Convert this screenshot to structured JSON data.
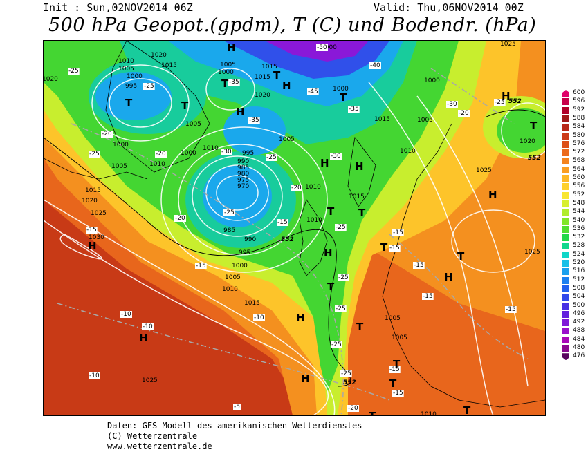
{
  "header": {
    "init": "Init : Sun,02NOV2014 06Z",
    "valid": "Valid: Thu,06NOV2014 00Z",
    "title": "500 hPa Geopot.(gpdm), T (C) und Bodendr. (hPa)"
  },
  "legend": {
    "values": [
      "600",
      "596",
      "592",
      "588",
      "584",
      "580",
      "576",
      "572",
      "568",
      "564",
      "560",
      "556",
      "552",
      "548",
      "544",
      "540",
      "536",
      "532",
      "528",
      "524",
      "520",
      "516",
      "512",
      "508",
      "504",
      "500",
      "496",
      "492",
      "488",
      "484",
      "480",
      "476"
    ],
    "colors": [
      "#e0006a",
      "#c8004a",
      "#b00028",
      "#a01818",
      "#b82818",
      "#cc3a18",
      "#dd5018",
      "#ec6a1c",
      "#f4841e",
      "#fa9e22",
      "#fdb826",
      "#fed02c",
      "#f8e632",
      "#d8ef30",
      "#b0ec2c",
      "#80e628",
      "#50de30",
      "#20d848",
      "#10d88c",
      "#10d6c8",
      "#18c0e8",
      "#1aa0ee",
      "#1c80f0",
      "#2060ee",
      "#3048ea",
      "#4830e4",
      "#6420de",
      "#8018d8",
      "#9a10cc",
      "#a808b8",
      "#8a0890",
      "#5a0660"
    ]
  },
  "map_labels": {
    "isobars": [
      "1020",
      "1015",
      "1010",
      "1005",
      "1000",
      "995",
      "1000",
      "1005",
      "1010",
      "1015",
      "1020",
      "1000",
      "1005",
      "1005",
      "1010",
      "1015",
      "1020",
      "1025",
      "1030",
      "1025",
      "1015",
      "1010",
      "1005",
      "1000",
      "995",
      "990",
      "985",
      "980",
      "975",
      "970",
      "1000",
      "1005",
      "1010",
      "1015",
      "1010",
      "1005",
      "1010",
      "1015",
      "1025",
      "1000",
      "1005",
      "1025",
      "1020",
      "1005",
      "1010",
      "1025",
      "995",
      "990",
      "1010",
      "1015",
      "1005"
    ],
    "temps": [
      "-25",
      "-30",
      "-35",
      "-40",
      "-45",
      "-50",
      "-25",
      "-30",
      "-35",
      "-20",
      "-20",
      "-25",
      "-25",
      "-20",
      "-15",
      "-15",
      "-20",
      "-25",
      "-30",
      "-25",
      "-25",
      "-25",
      "-20",
      "-15",
      "-15",
      "-10",
      "-10",
      "-10",
      "-5",
      "-10",
      "-15",
      "-15",
      "-15",
      "-15",
      "-20",
      "-20",
      "-15",
      "-15",
      "-15",
      "-20"
    ],
    "geopot": [
      "552",
      "552",
      "552",
      "552"
    ],
    "highs": [
      "H",
      "H",
      "H",
      "H",
      "H",
      "H",
      "H",
      "H",
      "H",
      "H",
      "H",
      "H",
      "H"
    ],
    "lows": [
      "T",
      "T",
      "T",
      "T",
      "T",
      "T",
      "T",
      "T",
      "T",
      "T",
      "T",
      "T",
      "T",
      "T",
      "T",
      "T"
    ]
  },
  "footer": {
    "line1": "Daten: GFS-Modell des amerikanischen Wetterdienstes",
    "line2": "(C) Wetterzentrale",
    "line3": "www.wetterzentrale.de"
  }
}
